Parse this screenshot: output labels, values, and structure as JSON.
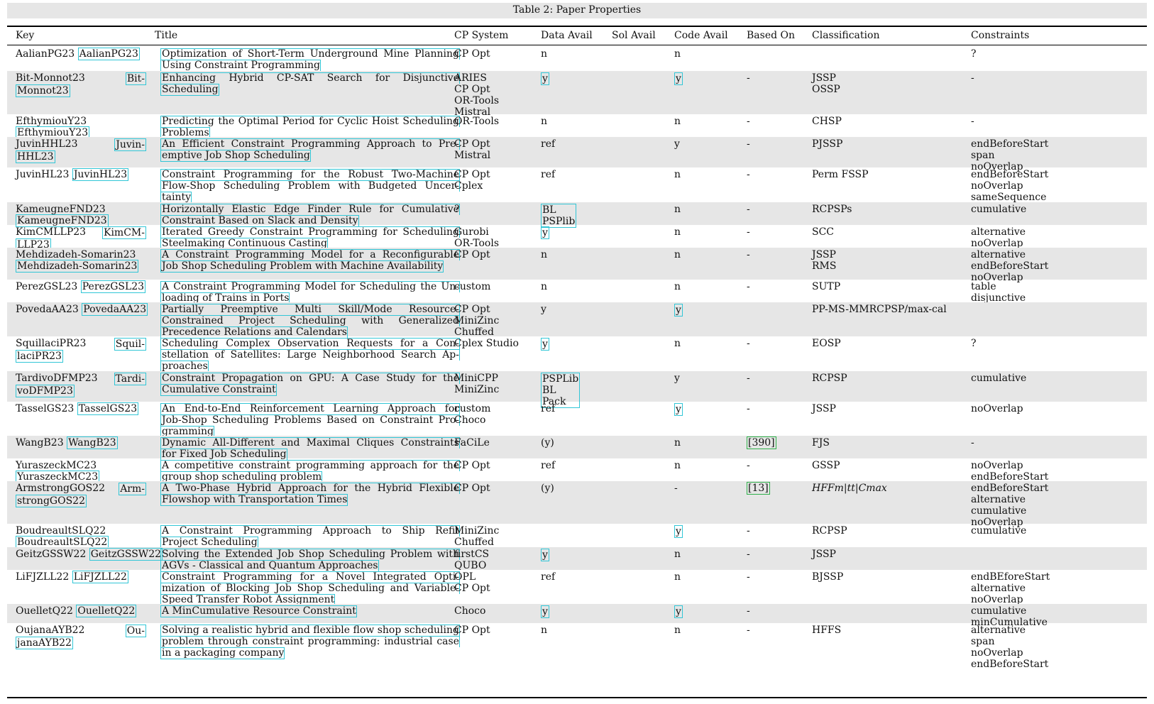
{
  "caption": "Table 2: Paper Properties",
  "columns": [
    "Key",
    "Title",
    "CP System",
    "Data Avail",
    "Sol Avail",
    "Code Avail",
    "Based On",
    "Classification",
    "Constraints"
  ],
  "rows": [
    {
      "key_lines": [
        "AalianPG23"
      ],
      "key_cite_lines": [
        "AalianPG23"
      ],
      "title_lines": [
        "Optimization of Short-Term Underground Mine Planning",
        "Using Constraint Programming"
      ],
      "cp": [
        "CP Opt"
      ],
      "data": "n",
      "code": "n",
      "based": "",
      "class_lines": [],
      "cons": [
        "?"
      ]
    },
    {
      "key_lines": [
        "Bit-Monnot23",
        "Bit-"
      ],
      "key_cite_lines": [
        "Monnot23"
      ],
      "title_lines": [
        "Enhancing Hybrid CP-SAT Search for Disjunctive",
        "Scheduling"
      ],
      "cp": [
        "ARIES",
        "CP Opt",
        "OR-Tools",
        "Mistral"
      ],
      "data": "y",
      "code": "y",
      "based": "-",
      "class_lines": [
        "JSSP",
        "OSSP"
      ],
      "cons": [
        "-"
      ]
    },
    {
      "key_lines": [
        "EfthymiouY23"
      ],
      "key_cite_lines": [
        "EfthymiouY23"
      ],
      "title_lines": [
        "Predicting the Optimal Period for Cyclic Hoist Scheduling",
        "Problems"
      ],
      "cp": [
        "OR-Tools"
      ],
      "data": "n",
      "code": "n",
      "based": "-",
      "class_lines": [
        "CHSP"
      ],
      "cons": [
        "-"
      ]
    },
    {
      "key_lines": [
        "JuvinHHL23",
        "Juvin-"
      ],
      "key_cite_lines": [
        "HHL23"
      ],
      "title_lines": [
        "An Efficient Constraint Programming Approach to Pre-",
        "emptive Job Shop Scheduling"
      ],
      "cp": [
        "CP Opt",
        "Mistral"
      ],
      "data": "ref",
      "code": "y",
      "based": "-",
      "class_lines": [
        "PJSSP"
      ],
      "cons": [
        "endBeforeStart",
        "span",
        "noOverlap"
      ]
    },
    {
      "key_lines": [
        "JuvinHL23"
      ],
      "key_cite_lines": [
        "JuvinHL23"
      ],
      "title_lines": [
        "Constraint Programming for the Robust Two-Machine",
        "Flow-Shop Scheduling Problem with Budgeted Uncer-",
        "tainty"
      ],
      "cp": [
        "CP Opt",
        "Cplex"
      ],
      "data": "ref",
      "code": "n",
      "based": "-",
      "class_lines": [
        "Perm FSSP"
      ],
      "cons": [
        "endBeforeStart",
        "noOverlap",
        "sameSequence"
      ]
    },
    {
      "key_lines": [
        "KameugneFND23"
      ],
      "key_cite_lines": [
        "KameugneFND23"
      ],
      "title_lines": [
        "Horizontally Elastic Edge Finder Rule for Cumulative",
        "Constraint Based on Slack and Density"
      ],
      "cp": [
        "?"
      ],
      "data_lines": [
        "BL",
        "PSPlib"
      ],
      "code": "n",
      "based": "-",
      "class_lines": [
        "RCPSPs"
      ],
      "cons": [
        "cumulative"
      ]
    },
    {
      "key_lines": [
        "KimCMLLP23"
      ],
      "key_cite_lines": [
        "KimCM-",
        "LLP23"
      ],
      "title_lines": [
        "Iterated Greedy Constraint Programming for Scheduling",
        "Steelmaking Continuous Casting"
      ],
      "cp": [
        "Gurobi",
        "OR-Tools"
      ],
      "data": "y",
      "code": "n",
      "based": "-",
      "class_lines": [
        "SCC"
      ],
      "cons": [
        "alternative",
        "noOverlap"
      ]
    },
    {
      "key_lines": [
        "Mehdizadeh-Somarin23"
      ],
      "key_cite_lines": [
        "Mehdizadeh-Somarin23"
      ],
      "title_lines": [
        "A Constraint Programming Model for a Reconfigurable",
        "Job Shop Scheduling Problem with Machine Availability"
      ],
      "cp": [
        "CP Opt"
      ],
      "data": "n",
      "code": "n",
      "based": "-",
      "class_lines": [
        "JSSP",
        "RMS"
      ],
      "cons": [
        "alternative",
        "endBeforeStart",
        "noOverlap"
      ]
    },
    {
      "key_lines": [
        "PerezGSL23"
      ],
      "key_cite_lines": [
        "PerezGSL23"
      ],
      "title_lines": [
        "A Constraint Programming Model for Scheduling the Un-",
        "loading of Trains in Ports"
      ],
      "cp": [
        "custom"
      ],
      "data": "n",
      "code": "n",
      "based": "-",
      "class_lines": [
        "SUTP"
      ],
      "cons": [
        "table",
        "disjunctive"
      ]
    },
    {
      "key_lines": [
        "PovedaAA23"
      ],
      "key_cite_lines": [
        "PovedaAA23"
      ],
      "title_lines": [
        "Partially Preemptive Multi Skill/Mode Resource-",
        "Constrained Project Scheduling with Generalized",
        "Precedence Relations and Calendars"
      ],
      "cp": [
        "CP Opt",
        "MiniZinc",
        "Chuffed"
      ],
      "data": "y",
      "code": "y",
      "based": "",
      "class_lines": [
        "PP-MS-MMRCPSP/max-cal"
      ],
      "cons": []
    },
    {
      "key_lines": [
        "SquillaciPR23",
        "Squil-"
      ],
      "key_cite_lines": [
        "laciPR23"
      ],
      "title_lines": [
        "Scheduling Complex Observation Requests for a Con-",
        "stellation of Satellites: Large Neighborhood Search Ap-",
        "proaches"
      ],
      "cp": [
        "Cplex Studio"
      ],
      "data": "y",
      "code": "n",
      "based": "-",
      "class_lines": [
        "EOSP"
      ],
      "cons": [
        "?"
      ]
    },
    {
      "key_lines": [
        "TardivoDFMP23",
        "Tardi-"
      ],
      "key_cite_lines": [
        "voDFMP23"
      ],
      "title_lines": [
        "Constraint Propagation on GPU: A Case Study for the",
        "Cumulative Constraint"
      ],
      "cp": [
        "MiniCPP",
        "MiniZinc"
      ],
      "data_lines": [
        "PSPLib",
        "BL",
        "Pack"
      ],
      "code": "y",
      "based": "-",
      "class_lines": [
        "RCPSP"
      ],
      "cons": [
        "cumulative"
      ]
    },
    {
      "key_lines": [
        "TasselGS23"
      ],
      "key_cite_lines": [
        "TasselGS23"
      ],
      "title_lines": [
        "An End-to-End Reinforcement Learning Approach for",
        "Job-Shop Scheduling Problems Based on Constraint Pro-",
        "gramming"
      ],
      "cp": [
        "custom",
        "Choco"
      ],
      "data": "ref",
      "code": "y",
      "based": "-",
      "class_lines": [
        "JSSP"
      ],
      "cons": [
        "noOverlap"
      ]
    },
    {
      "key_lines": [
        "WangB23"
      ],
      "key_cite_lines": [
        "WangB23"
      ],
      "title_lines": [
        "Dynamic All-Different and Maximal Cliques Constraints",
        "for Fixed Job Scheduling"
      ],
      "cp": [
        "FaCiLe"
      ],
      "data": "(y)",
      "code": "n",
      "based": "[390]",
      "class_lines": [
        "FJS"
      ],
      "cons": [
        "-"
      ]
    },
    {
      "key_lines": [
        "YuraszeckMC23"
      ],
      "key_cite_lines": [
        "YuraszeckMC23"
      ],
      "title_lines": [
        "A competitive constraint programming approach for the",
        "group shop scheduling problem"
      ],
      "cp": [
        "CP Opt"
      ],
      "data": "ref",
      "code": "n",
      "based": "-",
      "class_lines": [
        "GSSP"
      ],
      "cons": [
        "noOverlap",
        "endBeforeStart"
      ]
    },
    {
      "key_lines": [
        "ArmstrongGOS22",
        "Arm-"
      ],
      "key_cite_lines": [
        "strongGOS22"
      ],
      "title_lines": [
        "A Two-Phase Hybrid Approach for the Hybrid Flexible",
        "Flowshop with Transportation Times"
      ],
      "cp": [
        "CP Opt"
      ],
      "data": "(y)",
      "code": "-",
      "based": "[13]",
      "class_lines": [
        "HFFm|tt|Cmax"
      ],
      "cons": [
        "endBeforeStart",
        "alternative",
        "cumulative",
        "noOverlap"
      ]
    },
    {
      "key_lines": [
        "BoudreaultSLQ22"
      ],
      "key_cite_lines": [
        "BoudreaultSLQ22"
      ],
      "title_lines": [
        "A Constraint Programming Approach to Ship Refit",
        "Project Scheduling"
      ],
      "cp": [
        "MiniZinc",
        "Chuffed"
      ],
      "data": "",
      "code": "y",
      "based": "-",
      "class_lines": [
        "RCPSP"
      ],
      "cons": [
        "cumulative"
      ]
    },
    {
      "key_lines": [
        "GeitzGSSW22"
      ],
      "key_cite_lines": [
        "GeitzGSSW22"
      ],
      "title_lines": [
        "Solving the Extended Job Shop Scheduling Problem with",
        "AGVs - Classical and Quantum Approaches"
      ],
      "cp": [
        "firstCS",
        "QUBO"
      ],
      "data": "y",
      "code": "n",
      "based": "-",
      "class_lines": [
        "JSSP"
      ],
      "cons": []
    },
    {
      "key_lines": [
        "LiFJZLL22"
      ],
      "key_cite_lines": [
        "LiFJZLL22"
      ],
      "title_lines": [
        "Constraint Programming for a Novel Integrated Opti-",
        "mization of Blocking Job Shop Scheduling and Variable-",
        "Speed Transfer Robot Assignment"
      ],
      "cp": [
        "OPL",
        "CP Opt"
      ],
      "data": "ref",
      "code": "n",
      "based": "-",
      "class_lines": [
        "BJSSP"
      ],
      "cons": [
        "endBEforeStart",
        "alternative",
        "noOverlap"
      ]
    },
    {
      "key_lines": [
        "OuelletQ22"
      ],
      "key_cite_lines": [
        "OuelletQ22"
      ],
      "title_lines": [
        "A MinCumulative Resource Constraint"
      ],
      "cp": [
        "Choco"
      ],
      "data": "y",
      "code": "y",
      "based": "-",
      "class_lines": [],
      "cons": [
        "cumulative",
        "minCumulative"
      ]
    },
    {
      "key_lines": [
        "OujanaAYB22",
        "Ou-"
      ],
      "key_cite_lines": [
        "janaAYB22"
      ],
      "title_lines": [
        "Solving a realistic hybrid and flexible flow shop scheduling",
        "problem through constraint programming: industrial case",
        "in a packaging company"
      ],
      "cp": [
        "CP Opt"
      ],
      "data": "n",
      "code": "n",
      "based": "-",
      "class_lines": [
        "HFFS"
      ],
      "cons": [
        "alternative",
        "span",
        "noOverlap",
        "endBeforeStart"
      ]
    }
  ]
}
